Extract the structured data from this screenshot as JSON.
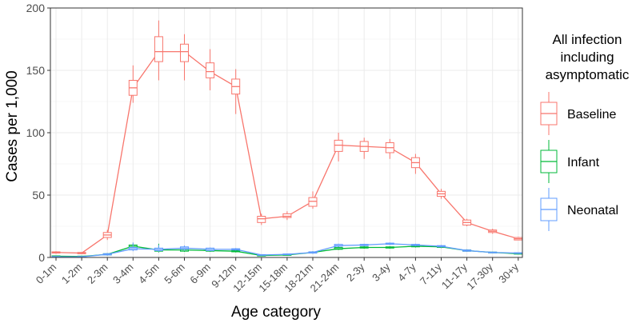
{
  "chart_data": {
    "type": "line",
    "xlabel": "Age category",
    "ylabel": "Cases per 1,000",
    "ylim": [
      0,
      200
    ],
    "y_ticks": [
      "0",
      "50",
      "100",
      "150",
      "200"
    ],
    "categories": [
      "0-1m",
      "1-2m",
      "2-3m",
      "3-4m",
      "4-5m",
      "5-6m",
      "6-9m",
      "9-12m",
      "12-15m",
      "15-18m",
      "18-21m",
      "21-24m",
      "2-3y",
      "3-4y",
      "4-7y",
      "7-11y",
      "11-17y",
      "17-30y",
      "30+y"
    ],
    "grid": true,
    "legend": {
      "title_lines": [
        "All infection",
        "including",
        "asymptomatic"
      ],
      "placement": "right"
    },
    "series": [
      {
        "name": "Baseline",
        "color": "#F8766D",
        "values": [
          4,
          3.5,
          18,
          136,
          165,
          165,
          149,
          137,
          31,
          33,
          45,
          90,
          89,
          88,
          76,
          51,
          28,
          21,
          15
        ],
        "q1": [
          3.5,
          3,
          16,
          130,
          157,
          157,
          144,
          131,
          28,
          32,
          41,
          85,
          85,
          84,
          72,
          49,
          26,
          20,
          14
        ],
        "q3": [
          4.5,
          4,
          20,
          142,
          177,
          171,
          156,
          143,
          33,
          35,
          48,
          94,
          93,
          92,
          80,
          53,
          30,
          22,
          16
        ],
        "low": [
          3,
          2.8,
          14,
          124,
          142,
          142,
          134,
          115,
          26,
          30,
          39,
          77,
          79,
          79,
          67,
          47,
          25,
          19,
          14
        ],
        "high": [
          5,
          4.3,
          22,
          154,
          190,
          179,
          167,
          151,
          35,
          37,
          53,
          100,
          96,
          95,
          83,
          55,
          31,
          23,
          16.5
        ]
      },
      {
        "name": "Infant",
        "color": "#00BA38",
        "values": [
          1,
          0.8,
          2.5,
          9,
          6,
          6,
          5.5,
          5,
          1.5,
          2,
          4,
          7,
          8,
          8,
          9,
          8.5,
          5.5,
          4,
          3
        ],
        "q1": [
          0.6,
          0.5,
          2,
          8,
          5,
          5,
          5,
          4.5,
          1.2,
          1.8,
          3.5,
          6.5,
          7.5,
          7.5,
          8.5,
          8,
          5,
          3.7,
          2.8
        ],
        "q3": [
          1.3,
          1.1,
          3,
          10,
          7,
          7,
          6,
          5.5,
          1.8,
          2.3,
          4.5,
          8,
          8.5,
          8.5,
          9.5,
          9,
          6,
          4.3,
          3.3
        ],
        "low": [
          0.3,
          0.3,
          1.5,
          7,
          4,
          4.5,
          4.5,
          4,
          1,
          1.5,
          3,
          6,
          7,
          7,
          8,
          7.5,
          4.5,
          3.5,
          2.5
        ],
        "high": [
          1.6,
          1.4,
          3.5,
          11,
          11,
          8,
          6.5,
          6,
          2,
          2.6,
          5,
          9,
          9,
          9,
          10,
          9.5,
          6.5,
          4.6,
          3.6
        ]
      },
      {
        "name": "Neonatal",
        "color": "#619CFF",
        "values": [
          0.5,
          0.5,
          2.5,
          7,
          6.5,
          7.5,
          6.5,
          6.5,
          2,
          2.5,
          4,
          9.5,
          10,
          11,
          10,
          9,
          5.5,
          4,
          3.5
        ],
        "q1": [
          0.3,
          0.3,
          2,
          6,
          5.5,
          6.5,
          5.5,
          6,
          1.8,
          2.2,
          3.5,
          9,
          9.5,
          10.5,
          9.5,
          8.5,
          5,
          3.7,
          3.2
        ],
        "q3": [
          0.8,
          0.8,
          3,
          8,
          7.5,
          8.5,
          7.5,
          7,
          2.3,
          2.8,
          4.5,
          10.5,
          10.5,
          11.5,
          10.5,
          9.5,
          6,
          4.3,
          3.8
        ],
        "low": [
          0.1,
          0.1,
          1.5,
          5,
          4.5,
          5.5,
          5,
          5.5,
          1.5,
          2,
          3,
          8.5,
          9,
          10,
          9,
          8,
          4.5,
          3.5,
          3
        ],
        "high": [
          1,
          1,
          3.5,
          12,
          10,
          9.5,
          8,
          7.5,
          2.6,
          3.1,
          5,
          11,
          11,
          12,
          11,
          10,
          6.5,
          4.6,
          4
        ]
      }
    ]
  }
}
